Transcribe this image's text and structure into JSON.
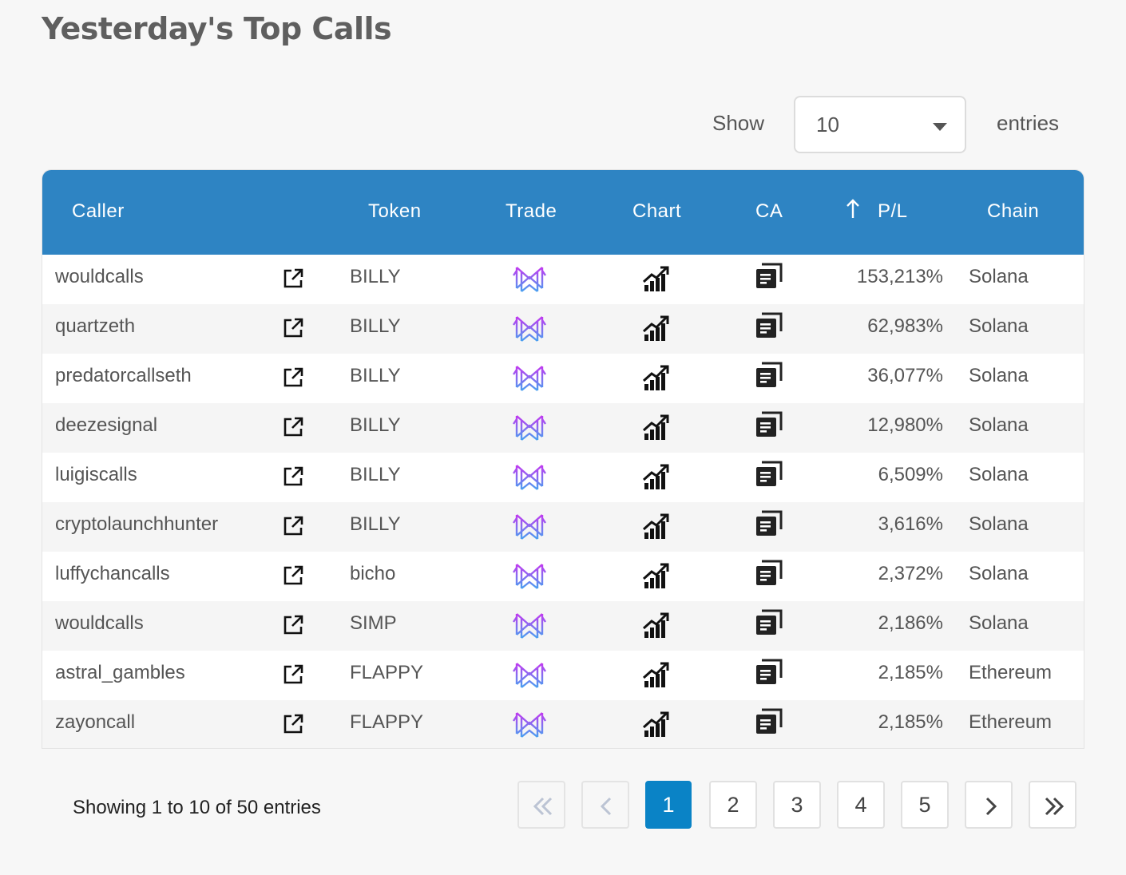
{
  "page": {
    "title": "Yesterday's Top Calls"
  },
  "length": {
    "show_label": "Show",
    "value": "10",
    "entries_label": "entries"
  },
  "table": {
    "headers": {
      "caller": "Caller",
      "token": "Token",
      "trade": "Trade",
      "chart": "Chart",
      "ca": "CA",
      "pl": "P/L",
      "chain": "Chain"
    },
    "sort": {
      "column": "P/L",
      "direction": "descending",
      "icon": "arrow-up-icon"
    },
    "rows": [
      {
        "caller": "wouldcalls",
        "token": "BILLY",
        "pl": "153,213%",
        "chain": "Solana"
      },
      {
        "caller": "quartzeth",
        "token": "BILLY",
        "pl": "62,983%",
        "chain": "Solana"
      },
      {
        "caller": "predatorcallseth",
        "token": "BILLY",
        "pl": "36,077%",
        "chain": "Solana"
      },
      {
        "caller": "deezesignal",
        "token": "BILLY",
        "pl": "12,980%",
        "chain": "Solana"
      },
      {
        "caller": "luigiscalls",
        "token": "BILLY",
        "pl": "6,509%",
        "chain": "Solana"
      },
      {
        "caller": "cryptolaunchhunter",
        "token": "BILLY",
        "pl": "3,616%",
        "chain": "Solana"
      },
      {
        "caller": "luffychancalls",
        "token": "bicho",
        "pl": "2,372%",
        "chain": "Solana"
      },
      {
        "caller": "wouldcalls",
        "token": "SIMP",
        "pl": "2,186%",
        "chain": "Solana"
      },
      {
        "caller": "astral_gambles",
        "token": "FLAPPY",
        "pl": "2,185%",
        "chain": "Ethereum"
      },
      {
        "caller": "zayoncall",
        "token": "FLAPPY",
        "pl": "2,185%",
        "chain": "Ethereum"
      }
    ],
    "row_icons": {
      "profile": "external-link-icon",
      "trade": "trade-logo-icon",
      "chart": "chart-up-icon",
      "ca": "copy-icon"
    }
  },
  "footer": {
    "info": "Showing 1 to 10 of 50 entries",
    "pages": [
      "1",
      "2",
      "3",
      "4",
      "5"
    ],
    "current_page": "1"
  },
  "colors": {
    "header_bg": "#2e84c3",
    "active_page": "#0a83c6",
    "trade_logo_purple": "#c13af0",
    "trade_logo_blue": "#4aa0f0"
  }
}
